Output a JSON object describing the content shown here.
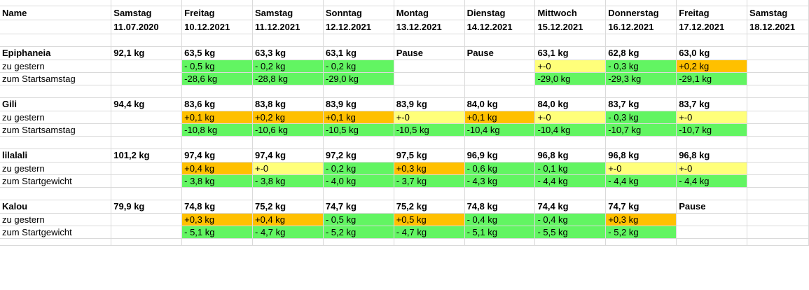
{
  "colors": {
    "green": "#62f562",
    "yellow": "#ffff7a",
    "orange": "#ffc000"
  },
  "header": {
    "name_label": "Name",
    "columns": [
      {
        "day": "Samstag",
        "date": "11.07.2020"
      },
      {
        "day": "Freitag",
        "date": "10.12.2021"
      },
      {
        "day": "Samstag",
        "date": "11.12.2021"
      },
      {
        "day": "Sonntag",
        "date": "12.12.2021"
      },
      {
        "day": "Montag",
        "date": "13.12.2021"
      },
      {
        "day": "Dienstag",
        "date": "14.12.2021"
      },
      {
        "day": "Mittwoch",
        "date": "15.12.2021"
      },
      {
        "day": "Donnerstag",
        "date": "16.12.2021"
      },
      {
        "day": "Freitag",
        "date": "17.12.2021"
      },
      {
        "day": "Samstag",
        "date": "18.12.2021"
      }
    ]
  },
  "people": [
    {
      "name": "Epiphaneia",
      "values": [
        "92,1 kg",
        "63,5 kg",
        "63,3 kg",
        "63,1 kg",
        "Pause",
        "Pause",
        "63,1 kg",
        "62,8 kg",
        "63,0 kg",
        ""
      ],
      "row2_label": "zu gestern",
      "row2": [
        "",
        "- 0,5 kg",
        "- 0,2 kg",
        "- 0,2 kg",
        "",
        "",
        "+-0",
        "- 0,3 kg",
        "+0,2 kg",
        ""
      ],
      "row2_colors": [
        "",
        "g",
        "g",
        "g",
        "",
        "",
        "y",
        "g",
        "o",
        ""
      ],
      "row3_label": "zum Startsamstag",
      "row3": [
        "",
        "-28,6 kg",
        "-28,8 kg",
        "-29,0 kg",
        "",
        "",
        "-29,0 kg",
        "-29,3 kg",
        "-29,1 kg",
        ""
      ],
      "row3_colors": [
        "",
        "g",
        "g",
        "g",
        "",
        "",
        "g",
        "g",
        "g",
        ""
      ]
    },
    {
      "name": "Gili",
      "values": [
        "94,4 kg",
        "83,6 kg",
        "83,8 kg",
        "83,9 kg",
        "83,9 kg",
        "84,0 kg",
        "84,0 kg",
        "83,7 kg",
        "83,7 kg",
        ""
      ],
      "row2_label": "zu gestern",
      "row2": [
        "",
        "+0,1 kg",
        "+0,2 kg",
        "+0,1 kg",
        "+-0",
        "+0,1 kg",
        "+-0",
        "- 0,3 kg",
        "+-0",
        ""
      ],
      "row2_colors": [
        "",
        "o",
        "o",
        "o",
        "y",
        "o",
        "y",
        "g",
        "y",
        ""
      ],
      "row3_label": "zum Startsamstag",
      "row3": [
        "",
        "-10,8 kg",
        "-10,6 kg",
        "-10,5 kg",
        "-10,5 kg",
        "-10,4 kg",
        "-10,4 kg",
        "-10,7 kg",
        "-10,7 kg",
        ""
      ],
      "row3_colors": [
        "",
        "g",
        "g",
        "g",
        "g",
        "g",
        "g",
        "g",
        "g",
        ""
      ]
    },
    {
      "name": "lilalali",
      "values": [
        "101,2 kg",
        "97,4 kg",
        "97,4 kg",
        "97,2  kg",
        "97,5 kg",
        "96,9 kg",
        "96,8 kg",
        "96,8 kg",
        "96,8 kg",
        ""
      ],
      "row2_label": "zu gestern",
      "row2": [
        "",
        "+0,4 kg",
        "+-0",
        "- 0,2 kg",
        "+0,3 kg",
        "- 0,6 kg",
        "- 0,1 kg",
        "+-0",
        "+-0",
        ""
      ],
      "row2_colors": [
        "",
        "o",
        "y",
        "g",
        "o",
        "g",
        "g",
        "y",
        "y",
        ""
      ],
      "row3_label": "zum Startgewicht",
      "row3": [
        "",
        "- 3,8 kg",
        "- 3,8 kg",
        "- 4,0 kg",
        "- 3,7 kg",
        "- 4,3 kg",
        "- 4,4 kg",
        "- 4,4 kg",
        "- 4,4 kg",
        ""
      ],
      "row3_colors": [
        "",
        "g",
        "g",
        "g",
        "g",
        "g",
        "g",
        "g",
        "g",
        ""
      ]
    },
    {
      "name": "Kalou",
      "values": [
        "79,9 kg",
        "74,8 kg",
        "75,2 kg",
        "74,7 kg",
        "75,2 kg",
        "74,8 kg",
        "74,4 kg",
        "74,7 kg",
        "Pause",
        ""
      ],
      "row2_label": "zu gestern",
      "row2": [
        "",
        "+0,3 kg",
        "+0,4 kg",
        "- 0,5 kg",
        "+0,5 kg",
        "- 0,4 kg",
        "- 0,4 kg",
        "+0,3 kg",
        "",
        ""
      ],
      "row2_colors": [
        "",
        "o",
        "o",
        "g",
        "o",
        "g",
        "g",
        "o",
        "",
        ""
      ],
      "row3_label": "zum Startgewicht",
      "row3": [
        "",
        "- 5,1 kg",
        "- 4,7 kg",
        "- 5,2 kg",
        "- 4,7 kg",
        "- 5,1 kg",
        "- 5,5 kg",
        "- 5,2 kg",
        "",
        ""
      ],
      "row3_colors": [
        "",
        "g",
        "g",
        "g",
        "g",
        "g",
        "g",
        "g",
        "",
        ""
      ]
    }
  ]
}
